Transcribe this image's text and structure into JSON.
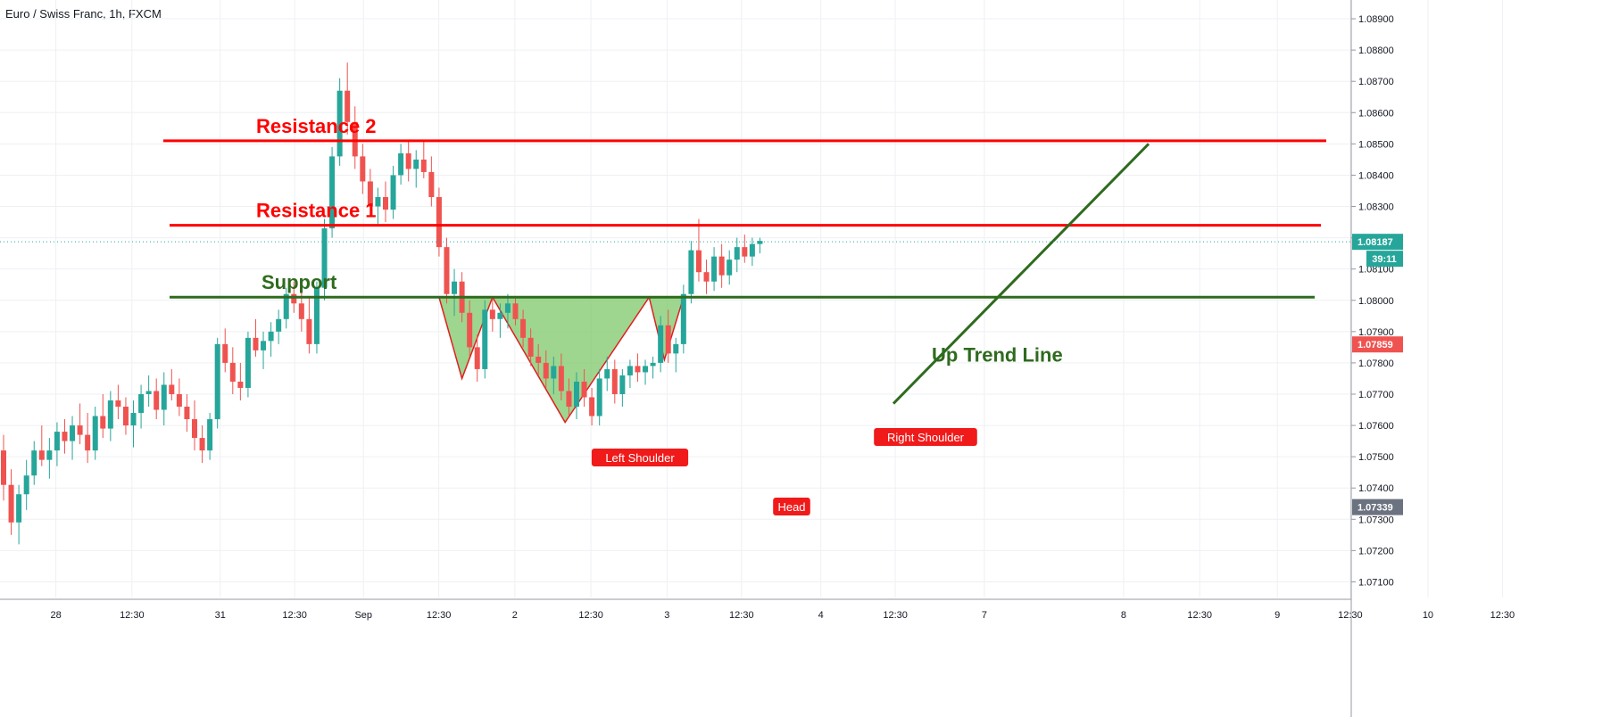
{
  "chart_data": {
    "type": "candlestick",
    "title": "Euro / Swiss Franc, 1h, FXCM",
    "symbol": "Euro / Swiss Franc",
    "interval": "1h",
    "source": "FXCM",
    "ylim": [
      1.0705,
      1.0896
    ],
    "y_ticks": [
      "1.08900",
      "1.08800",
      "1.08700",
      "1.08600",
      "1.08500",
      "1.08400",
      "1.08300",
      "1.08200",
      "1.08100",
      "1.08000",
      "1.07900",
      "1.07800",
      "1.07700",
      "1.07600",
      "1.07500",
      "1.07400",
      "1.07300",
      "1.07200",
      "1.07100"
    ],
    "x_ticks": [
      "28",
      "12:30",
      "31",
      "12:30",
      "Sep",
      "12:30",
      "2",
      "12:30",
      "3",
      "12:30",
      "4",
      "12:30",
      "7",
      "8",
      "12:30",
      "9",
      "12:30",
      "10",
      "12:30"
    ],
    "grid": true,
    "candle_up_color": "#26a69a",
    "candle_down_color": "#ef5350",
    "candles": [
      [
        1.0752,
        1.0757,
        1.0736,
        1.0741
      ],
      [
        1.0741,
        1.0746,
        1.0725,
        1.0729
      ],
      [
        1.0729,
        1.0741,
        1.0722,
        1.0738
      ],
      [
        1.0738,
        1.0749,
        1.0733,
        1.0744
      ],
      [
        1.0744,
        1.0755,
        1.0741,
        1.0752
      ],
      [
        1.0752,
        1.076,
        1.0747,
        1.0749
      ],
      [
        1.0749,
        1.0756,
        1.0743,
        1.0752
      ],
      [
        1.0752,
        1.0761,
        1.0747,
        1.0758
      ],
      [
        1.0758,
        1.0762,
        1.0751,
        1.0755
      ],
      [
        1.0755,
        1.0763,
        1.0749,
        1.076
      ],
      [
        1.076,
        1.0767,
        1.0754,
        1.0757
      ],
      [
        1.0757,
        1.0764,
        1.0748,
        1.0752
      ],
      [
        1.0752,
        1.0766,
        1.0749,
        1.0763
      ],
      [
        1.0763,
        1.077,
        1.0756,
        1.0759
      ],
      [
        1.0759,
        1.0771,
        1.0755,
        1.0768
      ],
      [
        1.0768,
        1.0773,
        1.0762,
        1.0766
      ],
      [
        1.0766,
        1.0769,
        1.0757,
        1.076
      ],
      [
        1.076,
        1.0768,
        1.0753,
        1.0764
      ],
      [
        1.0764,
        1.0773,
        1.0759,
        1.077
      ],
      [
        1.077,
        1.0776,
        1.0766,
        1.0771
      ],
      [
        1.0771,
        1.0775,
        1.0762,
        1.0765
      ],
      [
        1.0765,
        1.0777,
        1.076,
        1.0773
      ],
      [
        1.0773,
        1.0778,
        1.0768,
        1.077
      ],
      [
        1.077,
        1.0775,
        1.0763,
        1.0766
      ],
      [
        1.0766,
        1.077,
        1.0758,
        1.0762
      ],
      [
        1.0762,
        1.0768,
        1.0752,
        1.0756
      ],
      [
        1.0756,
        1.076,
        1.0748,
        1.0752
      ],
      [
        1.0752,
        1.0764,
        1.0749,
        1.0762
      ],
      [
        1.0762,
        1.0788,
        1.0759,
        1.0786
      ],
      [
        1.0786,
        1.0791,
        1.0777,
        1.078
      ],
      [
        1.078,
        1.0785,
        1.077,
        1.0774
      ],
      [
        1.0774,
        1.078,
        1.0768,
        1.0772
      ],
      [
        1.0772,
        1.079,
        1.0769,
        1.0788
      ],
      [
        1.0788,
        1.0794,
        1.0782,
        1.0784
      ],
      [
        1.0784,
        1.079,
        1.0778,
        1.0787
      ],
      [
        1.0787,
        1.0793,
        1.0782,
        1.079
      ],
      [
        1.079,
        1.0797,
        1.0786,
        1.0794
      ],
      [
        1.0794,
        1.0804,
        1.0791,
        1.0802
      ],
      [
        1.0802,
        1.0806,
        1.0796,
        1.0799
      ],
      [
        1.0799,
        1.0803,
        1.079,
        1.0794
      ],
      [
        1.0794,
        1.0801,
        1.0783,
        1.0786
      ],
      [
        1.0786,
        1.0806,
        1.0783,
        1.0804
      ],
      [
        1.0804,
        1.0826,
        1.08,
        1.0823
      ],
      [
        1.0823,
        1.0849,
        1.082,
        1.0846
      ],
      [
        1.0846,
        1.0871,
        1.0843,
        1.0867
      ],
      [
        1.0867,
        1.0876,
        1.0853,
        1.0857
      ],
      [
        1.0857,
        1.0862,
        1.0842,
        1.0846
      ],
      [
        1.0846,
        1.085,
        1.0834,
        1.0838
      ],
      [
        1.0838,
        1.0842,
        1.0827,
        1.083
      ],
      [
        1.083,
        1.0836,
        1.0824,
        1.0833
      ],
      [
        1.0833,
        1.0838,
        1.0825,
        1.0829
      ],
      [
        1.0829,
        1.0843,
        1.0826,
        1.084
      ],
      [
        1.084,
        1.085,
        1.0837,
        1.0847
      ],
      [
        1.0847,
        1.0851,
        1.0838,
        1.0842
      ],
      [
        1.0842,
        1.0848,
        1.0836,
        1.0845
      ],
      [
        1.0845,
        1.0851,
        1.0839,
        1.0841
      ],
      [
        1.0841,
        1.0846,
        1.083,
        1.0833
      ],
      [
        1.0833,
        1.0836,
        1.0814,
        1.0817
      ],
      [
        1.0817,
        1.082,
        1.0799,
        1.0802
      ],
      [
        1.0802,
        1.081,
        1.0795,
        1.0806
      ],
      [
        1.0806,
        1.0809,
        1.0793,
        1.0796
      ],
      [
        1.0796,
        1.08,
        1.0782,
        1.0785
      ],
      [
        1.0785,
        1.0789,
        1.0774,
        1.0778
      ],
      [
        1.0778,
        1.08,
        1.0775,
        1.0797
      ],
      [
        1.0797,
        1.0801,
        1.079,
        1.0794
      ],
      [
        1.0794,
        1.0799,
        1.0788,
        1.0796
      ],
      [
        1.0796,
        1.0802,
        1.0791,
        1.0799
      ],
      [
        1.0799,
        1.0801,
        1.0792,
        1.0794
      ],
      [
        1.0794,
        1.0797,
        1.0785,
        1.0788
      ],
      [
        1.0788,
        1.0791,
        1.0779,
        1.0782
      ],
      [
        1.0782,
        1.0786,
        1.0776,
        1.078
      ],
      [
        1.078,
        1.0784,
        1.0772,
        1.0775
      ],
      [
        1.0775,
        1.0782,
        1.077,
        1.0779
      ],
      [
        1.0779,
        1.0783,
        1.0768,
        1.0771
      ],
      [
        1.0771,
        1.0775,
        1.0763,
        1.0766
      ],
      [
        1.0766,
        1.0777,
        1.0762,
        1.0774
      ],
      [
        1.0774,
        1.0778,
        1.0766,
        1.0769
      ],
      [
        1.0769,
        1.0772,
        1.076,
        1.0763
      ],
      [
        1.0763,
        1.0778,
        1.076,
        1.0775
      ],
      [
        1.0775,
        1.0782,
        1.0771,
        1.0778
      ],
      [
        1.0778,
        1.0781,
        1.0767,
        1.077
      ],
      [
        1.077,
        1.0778,
        1.0766,
        1.0776
      ],
      [
        1.0776,
        1.0781,
        1.0772,
        1.0779
      ],
      [
        1.0779,
        1.0783,
        1.0774,
        1.0777
      ],
      [
        1.0777,
        1.0781,
        1.0773,
        1.0779
      ],
      [
        1.0779,
        1.0782,
        1.0775,
        1.078
      ],
      [
        1.078,
        1.0795,
        1.0777,
        1.0792
      ],
      [
        1.0792,
        1.0797,
        1.078,
        1.0783
      ],
      [
        1.0783,
        1.0788,
        1.0777,
        1.0786
      ],
      [
        1.0786,
        1.0805,
        1.0783,
        1.0802
      ],
      [
        1.0802,
        1.0819,
        1.0799,
        1.0816
      ],
      [
        1.0816,
        1.0826,
        1.0806,
        1.0809
      ],
      [
        1.0809,
        1.0813,
        1.0802,
        1.0806
      ],
      [
        1.0806,
        1.0817,
        1.0803,
        1.0814
      ],
      [
        1.0814,
        1.0818,
        1.0804,
        1.0808
      ],
      [
        1.0808,
        1.0816,
        1.0805,
        1.0813
      ],
      [
        1.0813,
        1.082,
        1.0809,
        1.0817
      ],
      [
        1.0817,
        1.0821,
        1.0812,
        1.0814
      ],
      [
        1.0814,
        1.082,
        1.0811,
        1.0818
      ],
      [
        1.0818,
        1.082,
        1.0815,
        1.0819
      ]
    ],
    "price_labels": [
      {
        "value": 1.08187,
        "text": "1.08187",
        "countdown": "39:11",
        "color": "#26a69a"
      },
      {
        "value": 1.07859,
        "text": "1.07859",
        "color": "#ef5350"
      },
      {
        "value": 1.07339,
        "text": "1.07339",
        "color": "#6b7280"
      }
    ],
    "horizontal_lines": [
      {
        "name": "Resistance 2",
        "value": 1.0851,
        "color": "#ff0000"
      },
      {
        "name": "Resistance 1",
        "value": 1.0824,
        "color": "#ff0000"
      },
      {
        "name": "Support",
        "value": 1.0801,
        "color": "#2e6b1e"
      }
    ],
    "trend_line": {
      "label": "Up Trend Line",
      "from": {
        "candle": 82,
        "value": 1.0768
      },
      "to": {
        "candle": 112,
        "value": 1.085
      },
      "color": "#2e6b1e"
    },
    "pattern": {
      "fill_color": "#7ec86a",
      "labels": [
        {
          "text": "Left Shoulder",
          "candle": 60,
          "value": 1.0775
        },
        {
          "text": "Head",
          "candle": 73,
          "value": 1.0762
        },
        {
          "text": "Right Shoulder",
          "candle": 86,
          "value": 1.078
        }
      ]
    }
  }
}
